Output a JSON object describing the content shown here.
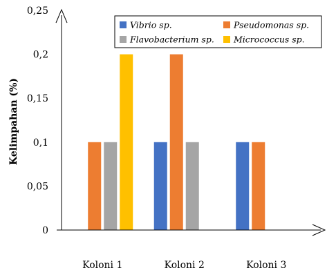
{
  "chart_data": {
    "type": "bar",
    "categories": [
      "Koloni 1",
      "Koloni 2",
      "Koloni 3"
    ],
    "series": [
      {
        "name": "Vibrio sp.",
        "color": "#4472C4",
        "values": [
          0,
          0.1,
          0.1
        ]
      },
      {
        "name": "Pseudomonas sp.",
        "color": "#ED7D31",
        "values": [
          0.1,
          0.2,
          0.1
        ]
      },
      {
        "name": "Flavobacterium sp.",
        "color": "#A5A5A5",
        "values": [
          0.1,
          0.1,
          0
        ]
      },
      {
        "name": "Micrococcus sp.",
        "color": "#FFC000",
        "values": [
          0.2,
          0,
          0
        ]
      }
    ],
    "yticks": [
      "0",
      "0,05",
      "0,1",
      "0,15",
      "0,2",
      "0,25"
    ],
    "ylabel": "Kelimpahan (%)",
    "xlabel": "",
    "ylim": [
      0,
      0.25
    ],
    "grid": false,
    "legend": "top"
  }
}
